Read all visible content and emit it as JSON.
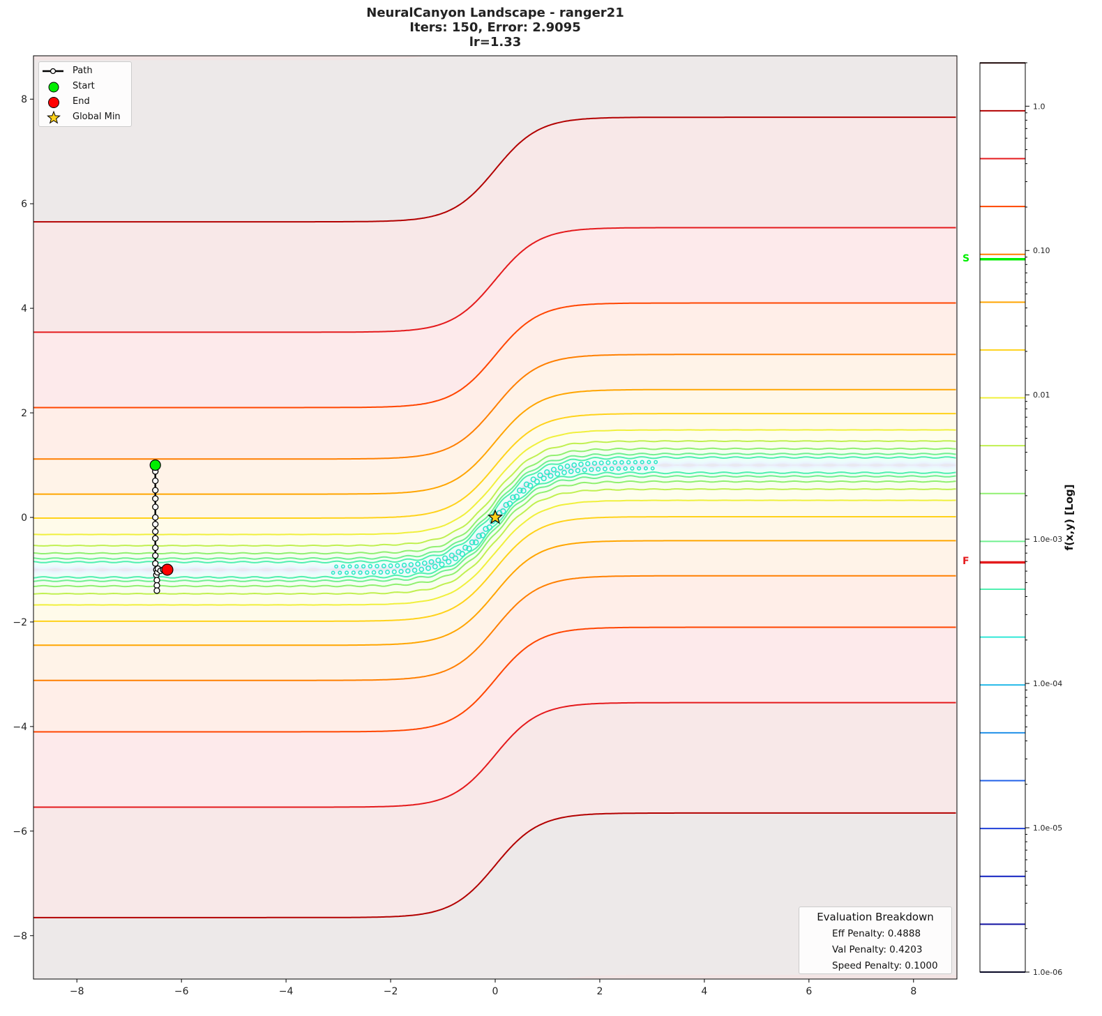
{
  "title": {
    "line1": "NeuralCanyon Landscape - ranger21",
    "line2": "Iters: 150, Error: 2.9095",
    "line3": "lr=1.33"
  },
  "legend": {
    "path": "Path",
    "start": "Start",
    "end": "End",
    "global_min": "Global Min"
  },
  "evaluation": {
    "header": "Evaluation Breakdown",
    "eff": "Eff Penalty: 0.4888",
    "val": "Val Penalty: 0.4203",
    "speed": "Speed Penalty: 0.1000"
  },
  "colorbar": {
    "label": "f(x,y) [Log]",
    "scale": "log",
    "range": [
      1e-06,
      2.0
    ],
    "ticks": [
      {
        "value": 1.0,
        "label": "1.0"
      },
      {
        "value": 0.1,
        "label": "0.10"
      },
      {
        "value": 0.01,
        "label": "0.01"
      },
      {
        "value": 0.001,
        "label": "1.0e-03"
      },
      {
        "value": 0.0001,
        "label": "1.0e-04"
      },
      {
        "value": 1e-05,
        "label": "1.0e-05"
      },
      {
        "value": 1e-06,
        "label": "1.0e-06"
      }
    ],
    "markers": [
      {
        "label": "S",
        "value": 0.087,
        "color": "#00ee00"
      },
      {
        "label": "F",
        "value": 0.00069,
        "color": "#e41a1c"
      }
    ]
  },
  "chart_data": {
    "type": "contour",
    "xlim": [
      -8.83,
      8.83
    ],
    "ylim": [
      -8.83,
      8.83
    ],
    "xticks": [
      -8,
      -6,
      -4,
      -2,
      0,
      2,
      4,
      6,
      8
    ],
    "yticks": [
      -8,
      -6,
      -4,
      -2,
      0,
      2,
      4,
      6,
      8
    ],
    "grid": false,
    "legend_placement": "top-left",
    "levels_log_range": [
      -6,
      0.3
    ],
    "level_count": 20,
    "level_colors": [
      "#101048",
      "#1010a0",
      "#1020c0",
      "#2040d8",
      "#2060e8",
      "#2090e8",
      "#20b8e8",
      "#30e8d8",
      "#50f0b0",
      "#70f090",
      "#90f070",
      "#c0f050",
      "#f0f03c",
      "#ffd21a",
      "#ffa500",
      "#ff7f00",
      "#ff4500",
      "#e41a1c",
      "#b30000",
      "#3a0a0a"
    ],
    "path": {
      "x": [
        -6.5,
        -6.5,
        -6.5,
        -6.5,
        -6.5,
        -6.5,
        -6.5,
        -6.5,
        -6.5,
        -6.5,
        -6.5,
        -6.5,
        -6.5,
        -6.48,
        -6.48,
        -6.47,
        -6.47,
        -6.47,
        -6.46,
        -6.45,
        -6.4,
        -6.35,
        -6.27
      ],
      "y": [
        1.0,
        0.88,
        0.7,
        0.52,
        0.36,
        0.2,
        0.0,
        -0.13,
        -0.27,
        -0.4,
        -0.58,
        -0.73,
        -0.88,
        -1.0,
        -1.1,
        -1.2,
        -1.3,
        -1.4,
        -1.05,
        -0.98,
        -1.02,
        -1.0,
        -1.0
      ]
    },
    "start": {
      "x": -6.5,
      "y": 1.0,
      "color": "#00ee00"
    },
    "end": {
      "x": -6.27,
      "y": -1.0,
      "color": "#ff0000"
    },
    "global_min": {
      "x": 0.0,
      "y": 0.0,
      "color": "#ffd21a"
    }
  }
}
